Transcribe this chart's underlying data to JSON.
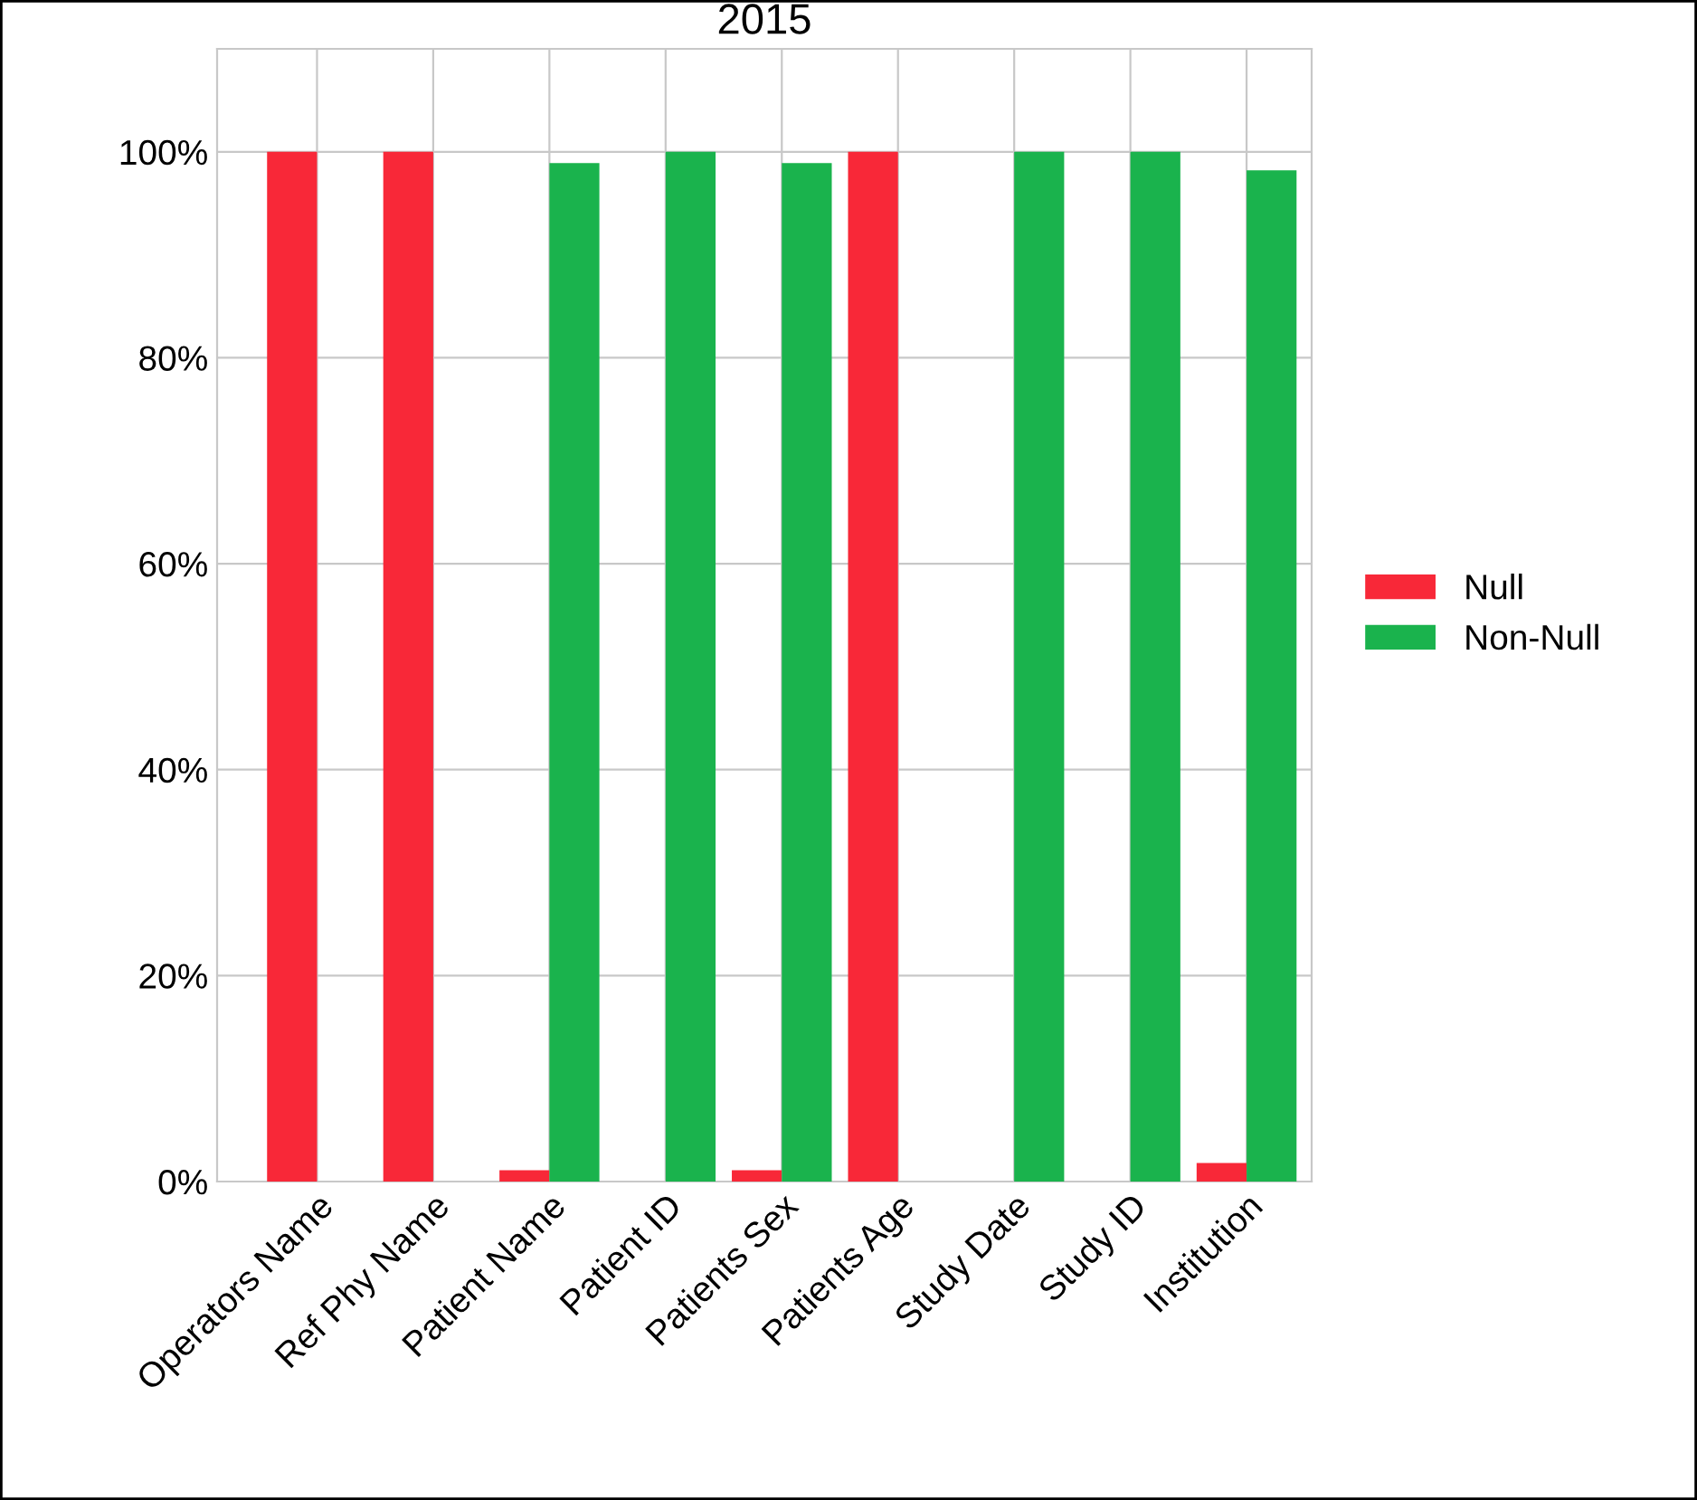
{
  "chart_data": {
    "type": "bar",
    "title": "2015",
    "categories": [
      "Operators Name",
      "Ref Phy Name",
      "Patient Name",
      "Patient ID",
      "Patients Sex",
      "Patients Age",
      "Study Date",
      "Study ID",
      "Institution"
    ],
    "series": [
      {
        "name": "Null",
        "color": "#f82838",
        "values": [
          100,
          100,
          1.1,
          0,
          1.1,
          100,
          0,
          0,
          1.8
        ]
      },
      {
        "name": "Non-Null",
        "color": "#1ab34d",
        "values": [
          0,
          0,
          98.9,
          100,
          98.9,
          0,
          100,
          100,
          98.2
        ]
      }
    ],
    "ylim": [
      0,
      110
    ],
    "yticks": [
      {
        "value": 0,
        "label": "0%"
      },
      {
        "value": 20,
        "label": "20%"
      },
      {
        "value": 40,
        "label": "40%"
      },
      {
        "value": 60,
        "label": "60%"
      },
      {
        "value": 80,
        "label": "80%"
      },
      {
        "value": 100,
        "label": "100%"
      }
    ],
    "grid": true,
    "legend": "right"
  }
}
